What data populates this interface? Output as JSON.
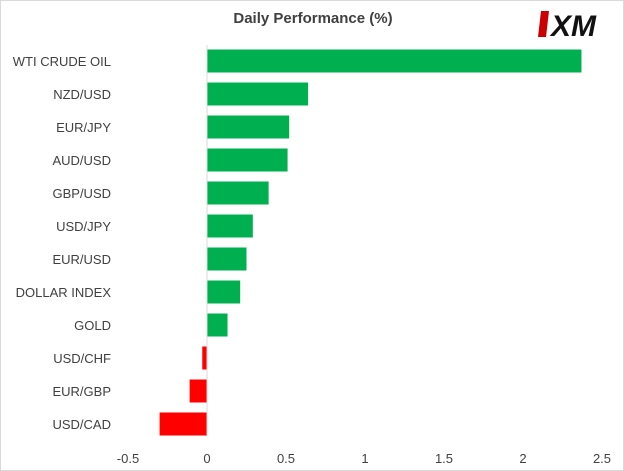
{
  "brand": {
    "logo_text": "XM",
    "logo_color": "#cc0000"
  },
  "chart_data": {
    "type": "bar",
    "orientation": "horizontal",
    "title": "Daily Performance  (%)",
    "xlabel": "",
    "ylabel": "",
    "categories": [
      "WTI CRUDE OIL",
      "NZD/USD",
      "EUR/JPY",
      "AUD/USD",
      "GBP/USD",
      "USD/JPY",
      "EUR/USD",
      "DOLLAR INDEX",
      "GOLD",
      "USD/CHF",
      "EUR/GBP",
      "USD/CAD"
    ],
    "values": [
      2.37,
      0.64,
      0.52,
      0.51,
      0.39,
      0.29,
      0.25,
      0.21,
      0.13,
      -0.03,
      -0.11,
      -0.3
    ],
    "xlim": [
      -0.5,
      2.5
    ],
    "xticks": [
      -0.5,
      0,
      0.5,
      1,
      1.5,
      2,
      2.5
    ],
    "xtick_labels": [
      "-0.5",
      "0",
      "0.5",
      "1",
      "1.5",
      "2",
      "2.5"
    ],
    "grid": false,
    "legend": "none",
    "positive_color": "#00b050",
    "negative_color": "#ff0000"
  }
}
